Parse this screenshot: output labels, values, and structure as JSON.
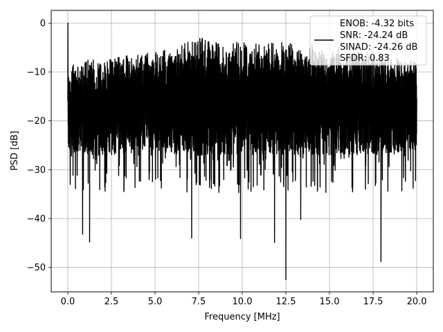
{
  "chart_data": {
    "type": "line",
    "title": "",
    "xlabel": "Frequency [MHz]",
    "ylabel": "PSD [dB]",
    "xlim": [
      -0.95,
      20.95
    ],
    "ylim": [
      -55.0,
      2.6
    ],
    "xticks": [
      0.0,
      2.5,
      5.0,
      7.5,
      10.0,
      12.5,
      15.0,
      17.5,
      20.0
    ],
    "xtick_labels": [
      "0.0",
      "2.5",
      "5.0",
      "7.5",
      "10.0",
      "12.5",
      "15.0",
      "17.5",
      "20.0"
    ],
    "yticks": [
      0,
      -10,
      -20,
      -30,
      -40,
      -50
    ],
    "ytick_labels": [
      "0",
      "−10",
      "−20",
      "−30",
      "−40",
      "−50"
    ],
    "grid": true,
    "legend_position": "top-right",
    "series": [
      {
        "color": "#000000",
        "description": "dense noise-like PSD trace over 0 to 20 MHz",
        "band": [
          [
            0.0,
            -10
          ],
          [
            2.5,
            -9
          ],
          [
            5.0,
            -8
          ],
          [
            7.5,
            -5
          ],
          [
            10.0,
            -6
          ],
          [
            12.5,
            -6
          ],
          [
            15.0,
            -8
          ],
          [
            17.5,
            -8
          ],
          [
            20.0,
            -10
          ]
        ],
        "lower_band": [
          [
            0.0,
            -27
          ],
          [
            2.5,
            -27
          ],
          [
            5.0,
            -26
          ],
          [
            7.5,
            -27
          ],
          [
            10.0,
            -27
          ],
          [
            12.5,
            -27
          ],
          [
            15.0,
            -27
          ],
          [
            17.5,
            -27
          ],
          [
            20.0,
            -26
          ]
        ],
        "peaks": [
          [
            0.0,
            0.0
          ],
          [
            7.1,
            -4.5
          ],
          [
            8.5,
            -4.0
          ],
          [
            11.5,
            -4.3
          ],
          [
            14.0,
            -4.5
          ],
          [
            15.5,
            -5.0
          ]
        ],
        "dips": [
          [
            0.85,
            -43.2
          ],
          [
            1.25,
            -44.8
          ],
          [
            7.1,
            -44.0
          ],
          [
            9.9,
            -44.1
          ],
          [
            11.85,
            -44.9
          ],
          [
            12.5,
            -52.5
          ],
          [
            13.35,
            -40.2
          ],
          [
            17.95,
            -48.8
          ]
        ]
      }
    ],
    "legend_lines": [
      "ENOB: -4.32 bits",
      "SNR: -24.24 dB",
      "SINAD: -24.26 dB",
      "SFDR: 0.83"
    ]
  }
}
